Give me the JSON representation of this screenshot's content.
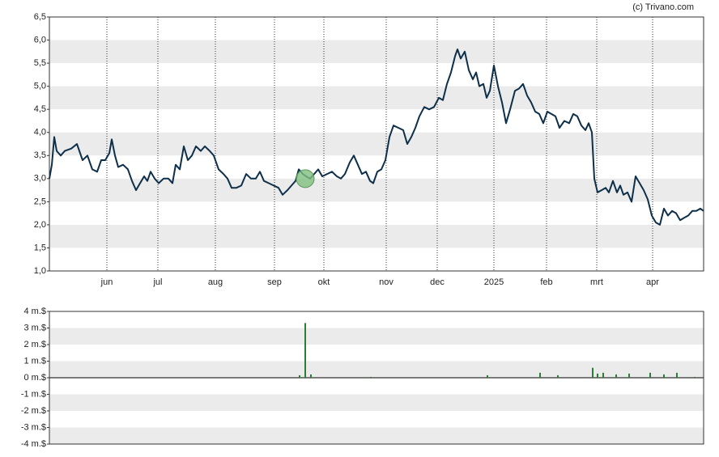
{
  "source": "(c) Trivano.com",
  "chart_data": [
    {
      "type": "line",
      "color": "#0d2f4a",
      "band_color": "#ebebeb",
      "xlim": [
        0,
        808
      ],
      "ylim": [
        1.0,
        6.5
      ],
      "xticks": [
        {
          "value": 71,
          "label": "jun"
        },
        {
          "value": 134,
          "label": "jul"
        },
        {
          "value": 205,
          "label": "aug"
        },
        {
          "value": 278,
          "label": "sep"
        },
        {
          "value": 339,
          "label": "okt"
        },
        {
          "value": 416,
          "label": "nov"
        },
        {
          "value": 479,
          "label": "dec"
        },
        {
          "value": 549,
          "label": "2025"
        },
        {
          "value": 614,
          "label": "feb"
        },
        {
          "value": 676,
          "label": "mrt"
        },
        {
          "value": 745,
          "label": "apr"
        }
      ],
      "yticks": [
        {
          "value": 1.0,
          "label": "1,0"
        },
        {
          "value": 1.5,
          "label": "1,5"
        },
        {
          "value": 2.0,
          "label": "2,0"
        },
        {
          "value": 2.5,
          "label": "2,5"
        },
        {
          "value": 3.0,
          "label": "3,0"
        },
        {
          "value": 3.5,
          "label": "3,5"
        },
        {
          "value": 4.0,
          "label": "4,0"
        },
        {
          "value": 4.5,
          "label": "4,5"
        },
        {
          "value": 5.0,
          "label": "5,0"
        },
        {
          "value": 5.5,
          "label": "5,5"
        },
        {
          "value": 6.0,
          "label": "6,0"
        },
        {
          "value": 6.5,
          "label": "6,5"
        }
      ],
      "x": [
        0,
        3,
        6,
        9,
        14,
        19,
        27,
        34,
        41,
        47,
        53,
        59,
        64,
        69,
        74,
        77,
        81,
        85,
        91,
        97,
        102,
        107,
        112,
        117,
        121,
        125,
        130,
        135,
        141,
        147,
        152,
        156,
        161,
        166,
        171,
        176,
        181,
        187,
        192,
        198,
        203,
        209,
        215,
        220,
        225,
        231,
        237,
        243,
        249,
        255,
        260,
        265,
        271,
        277,
        283,
        288,
        294,
        299,
        304,
        308,
        313,
        317,
        322,
        327,
        332,
        337,
        343,
        349,
        355,
        360,
        365,
        371,
        376,
        381,
        386,
        391,
        396,
        400,
        405,
        410,
        415,
        420,
        425,
        431,
        437,
        442,
        447,
        452,
        457,
        463,
        469,
        475,
        481,
        486,
        491,
        496,
        501,
        504,
        508,
        513,
        518,
        523,
        527,
        531,
        536,
        540,
        544,
        549,
        554,
        559,
        564,
        569,
        575,
        580,
        585,
        590,
        595,
        600,
        605,
        610,
        615,
        620,
        625,
        630,
        636,
        642,
        647,
        652,
        657,
        662,
        666,
        670,
        673,
        677,
        682,
        687,
        691,
        696,
        701,
        705,
        709,
        714,
        719,
        724,
        729,
        734,
        739,
        744,
        749,
        754,
        759,
        764,
        769,
        774,
        779,
        784,
        789,
        794,
        799,
        804,
        808
      ],
      "values": [
        3.0,
        3.3,
        3.9,
        3.6,
        3.5,
        3.6,
        3.65,
        3.75,
        3.4,
        3.5,
        3.2,
        3.15,
        3.4,
        3.4,
        3.55,
        3.85,
        3.5,
        3.25,
        3.3,
        3.2,
        2.95,
        2.75,
        2.9,
        3.05,
        2.95,
        3.15,
        3.0,
        2.9,
        3.0,
        3.0,
        2.9,
        3.3,
        3.2,
        3.7,
        3.4,
        3.5,
        3.7,
        3.6,
        3.7,
        3.6,
        3.5,
        3.2,
        3.1,
        3.0,
        2.8,
        2.8,
        2.85,
        3.1,
        3.0,
        3.0,
        3.15,
        2.95,
        2.9,
        2.85,
        2.8,
        2.65,
        2.75,
        2.85,
        2.95,
        3.2,
        3.1,
        3.05,
        3.0,
        3.1,
        3.2,
        3.05,
        3.1,
        3.15,
        3.05,
        3.0,
        3.1,
        3.35,
        3.5,
        3.3,
        3.1,
        3.15,
        2.95,
        2.9,
        3.15,
        3.2,
        3.4,
        3.9,
        4.15,
        4.1,
        4.05,
        3.75,
        3.9,
        4.1,
        4.35,
        4.55,
        4.5,
        4.55,
        4.75,
        4.7,
        5.05,
        5.3,
        5.65,
        5.8,
        5.6,
        5.75,
        5.35,
        5.15,
        5.3,
        5.0,
        5.05,
        4.75,
        4.9,
        5.45,
        5.0,
        4.65,
        4.2,
        4.5,
        4.9,
        4.95,
        5.05,
        4.8,
        4.65,
        4.45,
        4.4,
        4.2,
        4.45,
        4.4,
        4.35,
        4.1,
        4.25,
        4.2,
        4.4,
        4.35,
        4.15,
        4.05,
        4.2,
        4.0,
        3.0,
        2.7,
        2.75,
        2.8,
        2.7,
        2.95,
        2.7,
        2.85,
        2.65,
        2.7,
        2.5,
        3.05,
        2.9,
        2.75,
        2.55,
        2.2,
        2.05,
        2.0,
        2.35,
        2.2,
        2.3,
        2.25,
        2.1,
        2.15,
        2.2,
        2.3,
        2.3,
        2.35,
        2.3
      ],
      "marker": {
        "x": 316,
        "y": 3.0,
        "color": "#7fbf7f"
      }
    },
    {
      "type": "bar",
      "color": "#2e7d32",
      "band_color": "#ebebeb",
      "xlim": [
        0,
        808
      ],
      "ylim": [
        -4,
        4
      ],
      "yticks": [
        {
          "value": -4,
          "label": "-4 m.$"
        },
        {
          "value": -3,
          "label": "-3 m.$"
        },
        {
          "value": -2,
          "label": "-2 m.$"
        },
        {
          "value": -1,
          "label": "-1 m.$"
        },
        {
          "value": 0,
          "label": "0 m.$"
        },
        {
          "value": 1,
          "label": "1 m.$"
        },
        {
          "value": 2,
          "label": "2 m.$"
        },
        {
          "value": 3,
          "label": "3 m.$"
        },
        {
          "value": 4,
          "label": "4 m.$"
        }
      ],
      "x": [
        309,
        316,
        323,
        397,
        541,
        606,
        628,
        671,
        677,
        684,
        700,
        716,
        742,
        759,
        775,
        797
      ],
      "values": [
        0.15,
        3.3,
        0.2,
        0.05,
        0.15,
        0.3,
        0.15,
        0.6,
        0.25,
        0.3,
        0.2,
        0.25,
        0.3,
        0.2,
        0.3,
        0.05
      ]
    }
  ]
}
